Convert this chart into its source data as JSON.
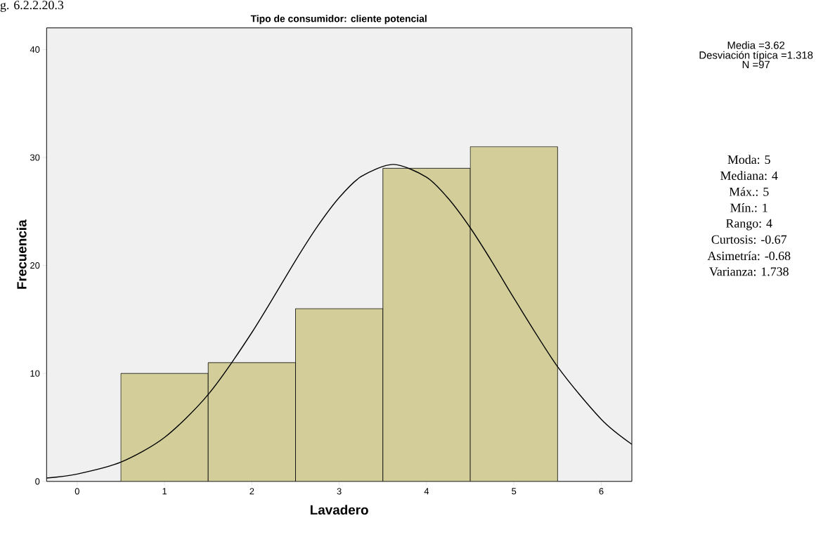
{
  "chart_data": {
    "type": "histogram",
    "title": "Tipo de consumidor: cliente potencial",
    "xlabel": "Lavadero",
    "ylabel": "Frecuencia",
    "bins": [
      0.5,
      1.5,
      2.5,
      3.5,
      4.5,
      5.5
    ],
    "values": [
      10,
      11,
      16,
      29,
      31
    ],
    "color": "#d3ce99",
    "xlim": [
      -0.35,
      6.35
    ],
    "ylim": [
      0,
      42
    ],
    "xticks": [
      0,
      1,
      2,
      3,
      4,
      5,
      6
    ],
    "yticks": [
      0,
      10,
      20,
      30,
      40
    ],
    "series": [
      {
        "type": "line",
        "color": "#000000",
        "x": [
          -0.35,
          0,
          0.5,
          1,
          1.5,
          2,
          2.5,
          2.75,
          3,
          3.25,
          3.62,
          4,
          4.25,
          4.5,
          4.75,
          5,
          5.5,
          6,
          6.35
        ],
        "values": [
          0.31,
          0.68,
          1.78,
          4.07,
          8.05,
          13.79,
          20.46,
          23.61,
          26.29,
          28.23,
          29.36,
          28.17,
          26.19,
          23.49,
          20.33,
          16.97,
          10.62,
          5.75,
          3.44
        ]
      }
    ],
    "annotations": [
      "g. 6.2.2.20.3",
      "Media =3.62",
      "Desviación típica =1.318",
      "N =97",
      "Moda: 5",
      "Mediana: 4",
      "Máx.: 5",
      "Mín.: 1",
      "Rango: 4",
      "Curtosis: -0.67",
      "Asimetría: -0.68",
      "Varianza: 1.738"
    ]
  }
}
